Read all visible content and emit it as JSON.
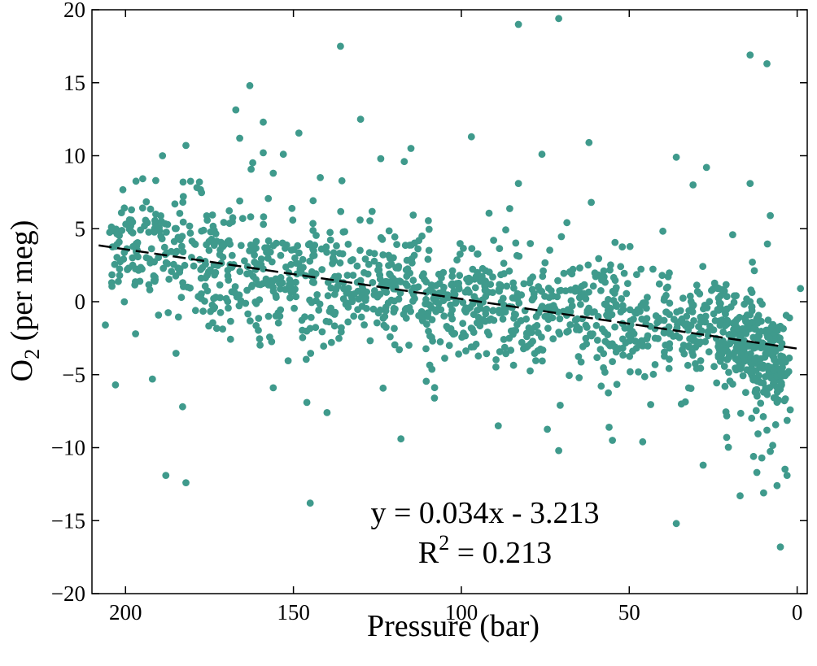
{
  "chart_data": {
    "type": "scatter",
    "xlabel": "Pressure (bar)",
    "ylabel_main": "O",
    "ylabel_sub": "2",
    "ylabel_rest": " (per meg)",
    "xlim": [
      210,
      -3
    ],
    "ylim": [
      -20,
      20
    ],
    "x_reversed": true,
    "xticks": [
      200,
      150,
      100,
      50,
      0
    ],
    "yticks": [
      -20,
      -15,
      -10,
      -5,
      0,
      5,
      10,
      15,
      20
    ],
    "ytick_labels": [
      "−20",
      "−15",
      "−10",
      "−5",
      "0",
      "5",
      "10",
      "15",
      "20"
    ],
    "xtick_labels": [
      "200",
      "150",
      "100",
      "50",
      "0"
    ],
    "grid": false,
    "point_color": "#3f9a8c",
    "fit_line": {
      "style": "dashed",
      "color": "#000000",
      "slope": 0.034,
      "intercept": -3.213,
      "x_range": [
        208,
        0
      ]
    },
    "annotation": {
      "line1": "y = 0.034x - 3.213",
      "line2_main": "R",
      "line2_sup": "2",
      "line2_rest": " = 0.213"
    },
    "outliers": [
      [
        71,
        19.4
      ],
      [
        83,
        19.0
      ],
      [
        136,
        17.5
      ],
      [
        14,
        16.9
      ],
      [
        9,
        16.3
      ],
      [
        163,
        14.8
      ],
      [
        130,
        12.5
      ],
      [
        159,
        12.3
      ],
      [
        97,
        11.3
      ],
      [
        166,
        11.2
      ],
      [
        62,
        10.9
      ],
      [
        182,
        10.7
      ],
      [
        115,
        10.5
      ],
      [
        159,
        10.2
      ],
      [
        76,
        10.1
      ],
      [
        153,
        10.1
      ],
      [
        189,
        10.0
      ],
      [
        36,
        9.9
      ],
      [
        124,
        9.8
      ],
      [
        117,
        9.6
      ],
      [
        27,
        9.2
      ],
      [
        156,
        8.8
      ],
      [
        191,
        8.3
      ],
      [
        142,
        8.5
      ],
      [
        31,
        8.0
      ],
      [
        14,
        8.1
      ],
      [
        83,
        8.1
      ],
      [
        178,
        8.2
      ],
      [
        166,
        6.9
      ],
      [
        8,
        5.9
      ],
      [
        -1,
        0.9
      ],
      [
        206,
        -1.6
      ],
      [
        203,
        -5.7
      ],
      [
        197,
        -2.2
      ],
      [
        192,
        -5.3
      ],
      [
        183,
        -7.2
      ],
      [
        188,
        -11.9
      ],
      [
        182,
        -12.4
      ],
      [
        145,
        -13.8
      ],
      [
        36,
        -15.2
      ],
      [
        17,
        -13.3
      ],
      [
        10,
        -13.1
      ],
      [
        6,
        -12.6
      ],
      [
        3,
        -11.9
      ],
      [
        5,
        -16.8
      ],
      [
        28,
        -11.2
      ],
      [
        46,
        -9.6
      ],
      [
        55,
        -9.5
      ],
      [
        89,
        -8.5
      ],
      [
        118,
        -9.4
      ],
      [
        140,
        -7.6
      ],
      [
        71,
        -10.2
      ],
      [
        13,
        -10.6
      ],
      [
        12,
        -11.7
      ],
      [
        21,
        -9.3
      ],
      [
        9,
        -8.8
      ],
      [
        56,
        -8.6
      ],
      [
        146,
        -6.9
      ],
      [
        156,
        -5.9
      ],
      [
        108,
        -6.6
      ]
    ]
  }
}
